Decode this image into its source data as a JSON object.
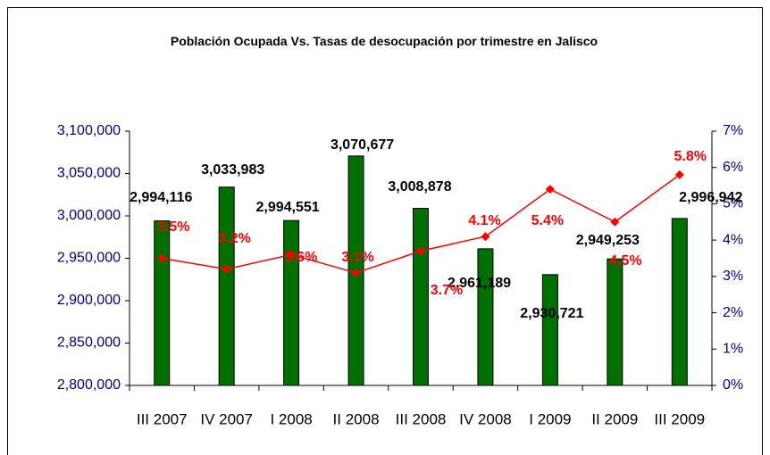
{
  "chart_data": {
    "type": "bar-line",
    "title": "Población Ocupada Vs. Tasas de desocupación por trimestre en Jalisco",
    "categories": [
      "III 2007",
      "IV 2007",
      "I 2008",
      "II 2008",
      "III 2008",
      "IV 2008",
      "I 2009",
      "II 2009",
      "III 2009"
    ],
    "series": [
      {
        "name": "Población Ocupada",
        "type": "bar",
        "color": "#007000",
        "values": [
          2994116,
          3033983,
          2994551,
          3070677,
          3008878,
          2961189,
          2930721,
          2949253,
          2996942
        ],
        "value_labels": [
          "2,994,116",
          "3,033,983",
          "2,994,551",
          "3,070,677",
          "3,008,878",
          "2,961,189",
          "2,930,721",
          "2,949,253",
          "2,996,942"
        ]
      },
      {
        "name": "Tasa de desocupación",
        "type": "line",
        "axis": "y2",
        "color": "#ff0000",
        "values": [
          3.5,
          3.2,
          3.6,
          3.1,
          3.7,
          4.1,
          5.4,
          4.5,
          5.8
        ],
        "value_labels": [
          "3.5%",
          "3.2%",
          "3.6%",
          "3.1%",
          "3.7%",
          "4.1%",
          "5.4%",
          "4.5%",
          "5.8%"
        ]
      }
    ],
    "ylim": [
      2800000,
      3100000
    ],
    "yticks": [
      {
        "value": 2800000,
        "label": "2,800,000"
      },
      {
        "value": 2850000,
        "label": "2,850,000"
      },
      {
        "value": 2900000,
        "label": "2,900,000"
      },
      {
        "value": 2950000,
        "label": "2,950,000"
      },
      {
        "value": 3000000,
        "label": "3,000,000"
      },
      {
        "value": 3050000,
        "label": "3,050,000"
      },
      {
        "value": 3100000,
        "label": "3,100,000"
      }
    ],
    "y2lim": [
      0,
      7
    ],
    "y2ticks": [
      {
        "value": 0,
        "label": "0%"
      },
      {
        "value": 1,
        "label": "1%"
      },
      {
        "value": 2,
        "label": "2%"
      },
      {
        "value": 3,
        "label": "3%"
      },
      {
        "value": 4,
        "label": "4%"
      },
      {
        "value": 5,
        "label": "5%"
      },
      {
        "value": 6,
        "label": "6%"
      },
      {
        "value": 7,
        "label": "7%"
      }
    ],
    "grid": false
  }
}
